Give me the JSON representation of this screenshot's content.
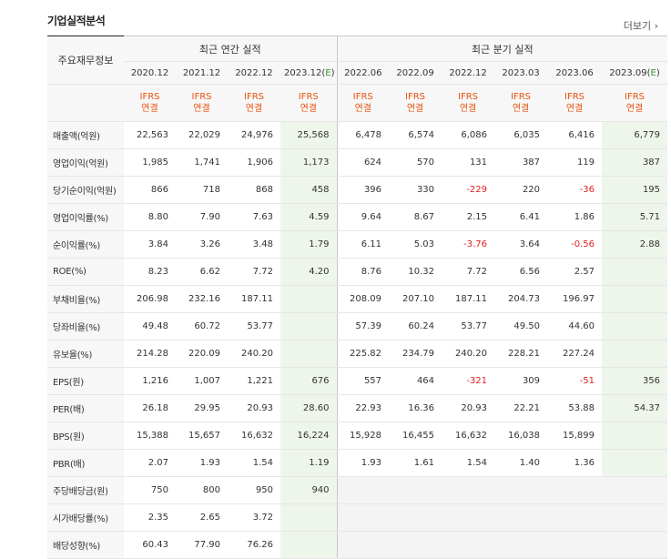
{
  "header": {
    "title": "기업실적분석",
    "more_label": "더보기"
  },
  "table": {
    "row_header": "주요재무정보",
    "groups": {
      "annual": "최근 연간 실적",
      "quarter": "최근 분기 실적"
    },
    "periods": [
      "2020.12",
      "2021.12",
      "2022.12",
      "2023.12(E)",
      "2022.06",
      "2022.09",
      "2022.12",
      "2023.03",
      "2023.06",
      "2023.09(E)"
    ],
    "ifrs": [
      "IFRS\n연결",
      "IFRS\n연결",
      "IFRS\n연결",
      "IFRS\n연결",
      "IFRS\n연결",
      "IFRS\n연결",
      "IFRS\n연결",
      "IFRS\n연결",
      "IFRS\n연결",
      "IFRS\n연결"
    ],
    "rows": [
      {
        "label": "매출액(억원)",
        "values": [
          "22,563",
          "22,029",
          "24,976",
          "25,568",
          "6,478",
          "6,574",
          "6,086",
          "6,035",
          "6,416",
          "6,779"
        ]
      },
      {
        "label": "영업이익(억원)",
        "values": [
          "1,985",
          "1,741",
          "1,906",
          "1,173",
          "624",
          "570",
          "131",
          "387",
          "119",
          "387"
        ]
      },
      {
        "label": "당기순이익(억원)",
        "values": [
          "866",
          "718",
          "868",
          "458",
          "396",
          "330",
          "-229",
          "220",
          "-36",
          "195"
        ]
      },
      {
        "label": "영업이익률(%)",
        "values": [
          "8.80",
          "7.90",
          "7.63",
          "4.59",
          "9.64",
          "8.67",
          "2.15",
          "6.41",
          "1.86",
          "5.71"
        ]
      },
      {
        "label": "순이익률(%)",
        "values": [
          "3.84",
          "3.26",
          "3.48",
          "1.79",
          "6.11",
          "5.03",
          "-3.76",
          "3.64",
          "-0.56",
          "2.88"
        ]
      },
      {
        "label": "ROE(%)",
        "values": [
          "8.23",
          "6.62",
          "7.72",
          "4.20",
          "8.76",
          "10.32",
          "7.72",
          "6.56",
          "2.57",
          ""
        ]
      },
      {
        "label": "부채비율(%)",
        "values": [
          "206.98",
          "232.16",
          "187.11",
          "",
          "208.09",
          "207.10",
          "187.11",
          "204.73",
          "196.97",
          ""
        ]
      },
      {
        "label": "당좌비율(%)",
        "values": [
          "49.48",
          "60.72",
          "53.77",
          "",
          "57.39",
          "60.24",
          "53.77",
          "49.50",
          "44.60",
          ""
        ]
      },
      {
        "label": "유보율(%)",
        "values": [
          "214.28",
          "220.09",
          "240.20",
          "",
          "225.82",
          "234.79",
          "240.20",
          "228.21",
          "227.24",
          ""
        ]
      },
      {
        "label": "EPS(원)",
        "values": [
          "1,216",
          "1,007",
          "1,221",
          "676",
          "557",
          "464",
          "-321",
          "309",
          "-51",
          "356"
        ]
      },
      {
        "label": "PER(배)",
        "values": [
          "26.18",
          "29.95",
          "20.93",
          "28.60",
          "22.93",
          "16.36",
          "20.93",
          "22.21",
          "53.88",
          "54.37"
        ]
      },
      {
        "label": "BPS(원)",
        "values": [
          "15,388",
          "15,657",
          "16,632",
          "16,224",
          "15,928",
          "16,455",
          "16,632",
          "16,038",
          "15,899",
          ""
        ]
      },
      {
        "label": "PBR(배)",
        "values": [
          "2.07",
          "1.93",
          "1.54",
          "1.19",
          "1.93",
          "1.61",
          "1.54",
          "1.40",
          "1.36",
          ""
        ]
      },
      {
        "label": "주당배당금(원)",
        "values": [
          "750",
          "800",
          "950",
          "940",
          "",
          "",
          "",
          "",
          "",
          ""
        ]
      },
      {
        "label": "시가배당률(%)",
        "values": [
          "2.35",
          "2.65",
          "3.72",
          "",
          "",
          "",
          "",
          "",
          "",
          ""
        ]
      },
      {
        "label": "배당성향(%)",
        "values": [
          "60.43",
          "77.90",
          "76.26",
          "",
          "",
          "",
          "",
          "",
          "",
          ""
        ]
      }
    ]
  },
  "colors": {
    "negative": "#e02020",
    "ifrs": "#e8530e",
    "estimate_bg": "#eef5ea",
    "estimate_text": "#2c9a2c"
  }
}
